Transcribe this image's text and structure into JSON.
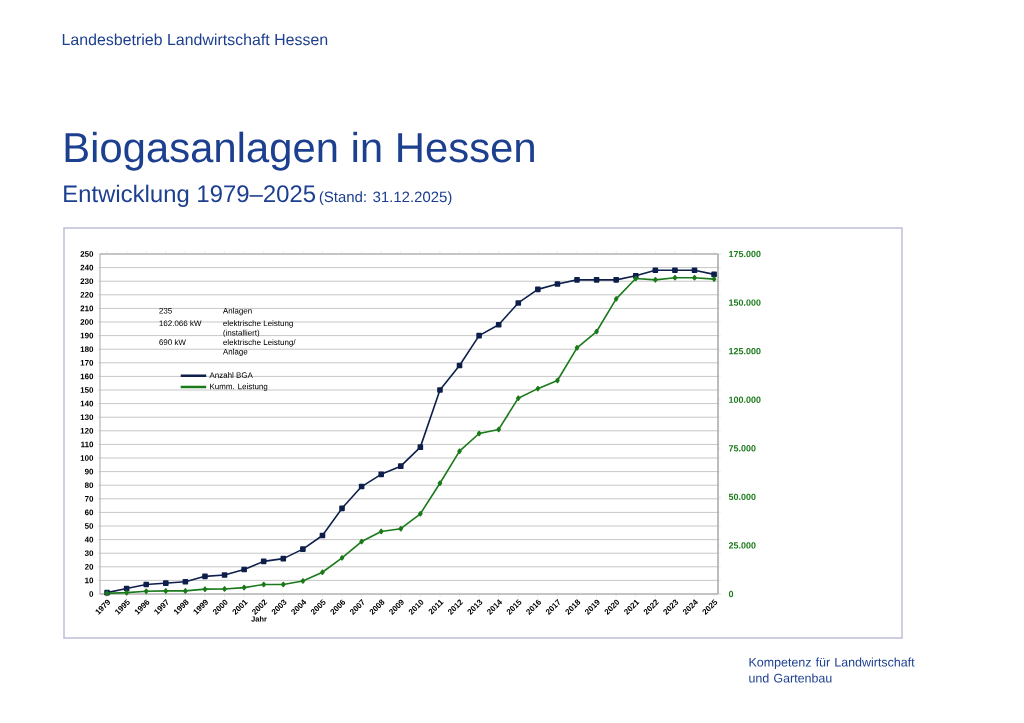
{
  "chart_data": {
    "type": "line",
    "title": "Biogasanlagen in Hessen",
    "subtitle": "Entwicklung 1979–2025",
    "xlabel": "Jahr",
    "categories": [
      "1979",
      "1995",
      "1996",
      "1997",
      "1998",
      "1999",
      "2000",
      "2001",
      "2002",
      "2003",
      "2004",
      "2005",
      "2006",
      "2007",
      "2008",
      "2009",
      "2010",
      "2011",
      "2012",
      "2013",
      "2014",
      "2015",
      "2016",
      "2017",
      "2018",
      "2019",
      "2020",
      "2021",
      "2022",
      "2023",
      "2024",
      "2025"
    ],
    "series": [
      {
        "name": "Anzahl BGA",
        "color": "#0d1f4a",
        "marker": "square",
        "values": [
          1,
          4,
          7,
          8,
          9,
          13,
          14,
          18,
          24,
          26,
          33,
          43,
          63,
          79,
          88,
          94,
          108,
          150,
          168,
          190,
          198,
          214,
          224,
          228,
          231,
          231,
          231,
          234,
          238,
          238,
          238,
          235
        ]
      },
      {
        "name": "Kumm. Leistung",
        "color": "#1a7a1a",
        "marker": "diamond",
        "axis": "y2",
        "values": [
          350,
          700,
          1400,
          1600,
          1600,
          2500,
          2600,
          3300,
          4900,
          4900,
          6700,
          11200,
          18600,
          27000,
          32200,
          33600,
          41300,
          57000,
          73500,
          82600,
          84700,
          100800,
          105700,
          109900,
          126700,
          135100,
          151900,
          162400,
          161700,
          162800,
          162800,
          162066
        ]
      }
    ],
    "ylim": [
      0,
      250
    ],
    "yticks": [
      0,
      10,
      20,
      30,
      40,
      50,
      60,
      70,
      80,
      90,
      100,
      110,
      120,
      130,
      140,
      150,
      160,
      170,
      180,
      190,
      200,
      210,
      220,
      230,
      240,
      250
    ],
    "y2lim": [
      0,
      175000
    ],
    "y2ticks": [
      {
        "value": 0,
        "label": "0"
      },
      {
        "value": 25000,
        "label": "25.000"
      },
      {
        "value": 50000,
        "label": "50.000"
      },
      {
        "value": 75000,
        "label": "75.000"
      },
      {
        "value": 100000,
        "label": "100.000"
      },
      {
        "value": 125000,
        "label": "125.000"
      },
      {
        "value": 150000,
        "label": "150.000"
      },
      {
        "value": 175000,
        "label": "175.000"
      }
    ],
    "grid": "y",
    "legend": "top left",
    "annotations": [
      "Landesbetrieb Landwirtschaft Hessen",
      "(Stand: 31.12.2025)",
      "235",
      "Anlagen",
      "162.066 kW",
      "elektrische Leistung (installiert)",
      "690 kW",
      "elektrische Leistung/ Anlage",
      "Kompetenz für Landwirtschaft und Gartenbau"
    ]
  }
}
